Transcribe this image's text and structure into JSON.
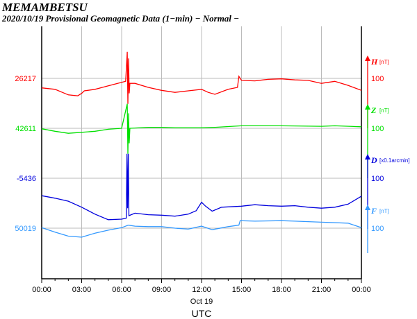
{
  "header": {
    "station": "MEMAMBETSU",
    "subtitle": "2020/10/19  Provisional Geomagnetic Data (1−min)  − Normal −"
  },
  "chart_data": {
    "type": "line",
    "title": "MEMAMBETSU",
    "subtitle": "2020/10/19  Provisional Geomagnetic Data (1−min)  − Normal −",
    "xlabel": "UTC",
    "xdate": "Oct 19",
    "xlim": [
      0,
      24
    ],
    "xticks": [
      "00:00",
      "03:00",
      "06:00",
      "09:00",
      "12:00",
      "15:00",
      "18:00",
      "21:00",
      "00:00"
    ],
    "scale_label": "100",
    "grid": true,
    "series": [
      {
        "name": "H",
        "unit": "[nT]",
        "baseline": "26217",
        "color": "#ff0000",
        "points": [
          [
            0,
            -19
          ],
          [
            1,
            -22
          ],
          [
            2,
            -33
          ],
          [
            2.7,
            -35
          ],
          [
            3,
            -30
          ],
          [
            3.2,
            -25
          ],
          [
            4,
            -22
          ],
          [
            5,
            -15
          ],
          [
            6,
            -8
          ],
          [
            6.3,
            -6
          ],
          [
            6.42,
            53
          ],
          [
            6.47,
            -51
          ],
          [
            6.52,
            40
          ],
          [
            6.57,
            -30
          ],
          [
            6.62,
            -10
          ],
          [
            7,
            -10
          ],
          [
            8,
            -18
          ],
          [
            9,
            -24
          ],
          [
            10,
            -28
          ],
          [
            11,
            -25
          ],
          [
            12,
            -22
          ],
          [
            12.5,
            -28
          ],
          [
            13,
            -32
          ],
          [
            14,
            -22
          ],
          [
            14.7,
            -18
          ],
          [
            14.8,
            4
          ],
          [
            15,
            -4
          ],
          [
            16,
            -5
          ],
          [
            17,
            -2
          ],
          [
            18,
            -1
          ],
          [
            19,
            -3
          ],
          [
            20,
            -4
          ],
          [
            21,
            -10
          ],
          [
            22,
            -6
          ],
          [
            23,
            -14
          ],
          [
            24,
            -24
          ]
        ]
      },
      {
        "name": "Z",
        "unit": "[nT]",
        "baseline": "42611",
        "color": "#00e000",
        "points": [
          [
            0,
            -1
          ],
          [
            1,
            -6
          ],
          [
            2,
            -10
          ],
          [
            3,
            -8
          ],
          [
            4,
            -6
          ],
          [
            5,
            -2
          ],
          [
            6,
            0
          ],
          [
            6.42,
            49
          ],
          [
            6.47,
            -51
          ],
          [
            6.52,
            30
          ],
          [
            6.57,
            -30
          ],
          [
            6.62,
            0
          ],
          [
            8,
            2
          ],
          [
            9,
            2
          ],
          [
            10,
            1
          ],
          [
            12,
            1
          ],
          [
            13,
            2
          ],
          [
            15,
            5
          ],
          [
            18,
            5
          ],
          [
            21,
            4
          ],
          [
            22,
            5
          ],
          [
            24,
            3
          ]
        ]
      },
      {
        "name": "D",
        "unit": "[x0.1arcmin]",
        "baseline": "-5436",
        "color": "#0000dd",
        "points": [
          [
            0,
            -35
          ],
          [
            1,
            -40
          ],
          [
            2,
            -46
          ],
          [
            3,
            -58
          ],
          [
            4,
            -72
          ],
          [
            5,
            -83
          ],
          [
            6,
            -82
          ],
          [
            6.35,
            -80
          ],
          [
            6.4,
            49
          ],
          [
            6.45,
            -60
          ],
          [
            6.5,
            49
          ],
          [
            6.55,
            -75
          ],
          [
            7,
            -70
          ],
          [
            8,
            -73
          ],
          [
            9,
            -74
          ],
          [
            10,
            -76
          ],
          [
            11,
            -72
          ],
          [
            11.6,
            -65
          ],
          [
            12,
            -48
          ],
          [
            12.3,
            -56
          ],
          [
            12.8,
            -66
          ],
          [
            13.5,
            -58
          ],
          [
            15,
            -56
          ],
          [
            16,
            -53
          ],
          [
            17,
            -55
          ],
          [
            18,
            -56
          ],
          [
            19,
            -55
          ],
          [
            20,
            -58
          ],
          [
            21,
            -60
          ],
          [
            22,
            -58
          ],
          [
            23,
            -52
          ],
          [
            24,
            -36
          ]
        ]
      },
      {
        "name": "F",
        "unit": "[nT]",
        "baseline": "50019",
        "color": "#3399ff",
        "points": [
          [
            0,
            1
          ],
          [
            1,
            -8
          ],
          [
            2,
            -16
          ],
          [
            3,
            -18
          ],
          [
            4,
            -10
          ],
          [
            5,
            -4
          ],
          [
            6,
            1
          ],
          [
            6.5,
            6
          ],
          [
            7,
            4
          ],
          [
            8,
            3
          ],
          [
            9,
            3
          ],
          [
            10,
            0
          ],
          [
            11,
            -2
          ],
          [
            12,
            4
          ],
          [
            12.8,
            -3
          ],
          [
            14,
            3
          ],
          [
            14.8,
            6
          ],
          [
            14.9,
            15
          ],
          [
            16,
            14
          ],
          [
            18,
            15
          ],
          [
            19,
            14
          ],
          [
            21,
            12
          ],
          [
            23,
            10
          ],
          [
            24,
            1
          ]
        ]
      }
    ]
  }
}
